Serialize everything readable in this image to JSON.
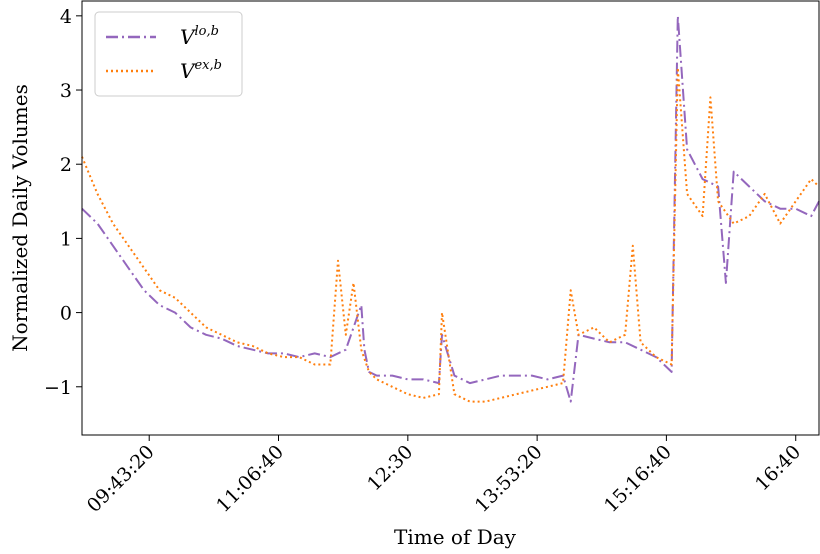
{
  "chart_data": {
    "type": "line",
    "xlabel": "Time of Day",
    "ylabel": "Normalized Daily Volumes",
    "x_ticks": [
      "09:43:20",
      "11:06:40",
      "12:30",
      "13:53:20",
      "15:16:40",
      "16:40"
    ],
    "x_tick_values_sec": [
      34999,
      39999,
      45000,
      50000,
      54999,
      60000
    ],
    "xlim_sec": [
      32400,
      60900
    ],
    "ylim": [
      -1.65,
      4.2
    ],
    "y_ticks": [
      -1,
      0,
      1,
      2,
      3,
      4
    ],
    "y_tick_labels": [
      "−1",
      "0",
      "1",
      "2",
      "3",
      "4"
    ],
    "grid": false,
    "legend_position": "top-left",
    "series": [
      {
        "name_base": "V",
        "name_sup": "lo,b",
        "color": "#9467bd",
        "dash": "dashdot",
        "x_times": [
          "09:00",
          "09:10",
          "09:20",
          "09:30",
          "09:40",
          "09:50",
          "10:00",
          "10:10",
          "10:20",
          "10:30",
          "10:40",
          "10:50",
          "11:00",
          "11:10",
          "11:20",
          "11:30",
          "11:40",
          "11:50",
          "12:00",
          "12:02",
          "12:05",
          "12:10",
          "12:20",
          "12:30",
          "12:40",
          "12:50",
          "12:52",
          "13:00",
          "13:10",
          "13:20",
          "13:30",
          "13:40",
          "13:50",
          "14:00",
          "14:10",
          "14:15",
          "14:20",
          "14:30",
          "14:40",
          "14:50",
          "15:00",
          "15:10",
          "15:20",
          "15:24",
          "15:30",
          "15:40",
          "15:50",
          "15:55",
          "16:00",
          "16:10",
          "16:20",
          "16:30",
          "16:40",
          "16:50",
          "16:55"
        ],
        "values": [
          1.4,
          1.2,
          0.9,
          0.6,
          0.3,
          0.1,
          0.0,
          -0.2,
          -0.3,
          -0.35,
          -0.45,
          -0.5,
          -0.55,
          -0.55,
          -0.6,
          -0.55,
          -0.6,
          -0.5,
          0.1,
          -0.5,
          -0.8,
          -0.85,
          -0.85,
          -0.9,
          -0.9,
          -0.95,
          -0.3,
          -0.85,
          -0.95,
          -0.9,
          -0.85,
          -0.85,
          -0.85,
          -0.9,
          -0.85,
          -1.2,
          -0.3,
          -0.35,
          -0.4,
          -0.4,
          -0.5,
          -0.6,
          -0.8,
          4.0,
          2.2,
          1.8,
          1.7,
          0.4,
          1.9,
          1.7,
          1.5,
          1.4,
          1.4,
          1.3,
          1.5
        ]
      },
      {
        "name_base": "V",
        "name_sup": "ex,b",
        "color": "#ff7f0e",
        "dash": "dotted",
        "x_times": [
          "09:00",
          "09:10",
          "09:20",
          "09:30",
          "09:40",
          "09:50",
          "10:00",
          "10:10",
          "10:20",
          "10:30",
          "10:40",
          "10:50",
          "11:00",
          "11:10",
          "11:20",
          "11:30",
          "11:40",
          "11:45",
          "11:50",
          "11:55",
          "12:00",
          "12:05",
          "12:10",
          "12:20",
          "12:30",
          "12:40",
          "12:50",
          "12:52",
          "13:00",
          "13:10",
          "13:20",
          "13:30",
          "13:40",
          "13:50",
          "14:00",
          "14:10",
          "14:15",
          "14:20",
          "14:30",
          "14:40",
          "14:50",
          "14:55",
          "15:00",
          "15:10",
          "15:20",
          "15:24",
          "15:30",
          "15:40",
          "15:45",
          "15:50",
          "16:00",
          "16:10",
          "16:20",
          "16:30",
          "16:40",
          "16:50",
          "16:55"
        ],
        "values": [
          2.1,
          1.6,
          1.2,
          0.9,
          0.6,
          0.3,
          0.2,
          0.0,
          -0.2,
          -0.3,
          -0.4,
          -0.45,
          -0.55,
          -0.6,
          -0.6,
          -0.7,
          -0.7,
          0.7,
          -0.3,
          0.4,
          -0.5,
          -0.8,
          -0.9,
          -1.0,
          -1.1,
          -1.15,
          -1.1,
          0.0,
          -1.1,
          -1.2,
          -1.2,
          -1.15,
          -1.1,
          -1.05,
          -1.0,
          -0.95,
          0.3,
          -0.3,
          -0.2,
          -0.4,
          -0.3,
          0.9,
          -0.4,
          -0.6,
          -0.7,
          3.3,
          1.6,
          1.3,
          2.9,
          1.5,
          1.2,
          1.3,
          1.6,
          1.2,
          1.5,
          1.8,
          1.7
        ]
      }
    ]
  }
}
